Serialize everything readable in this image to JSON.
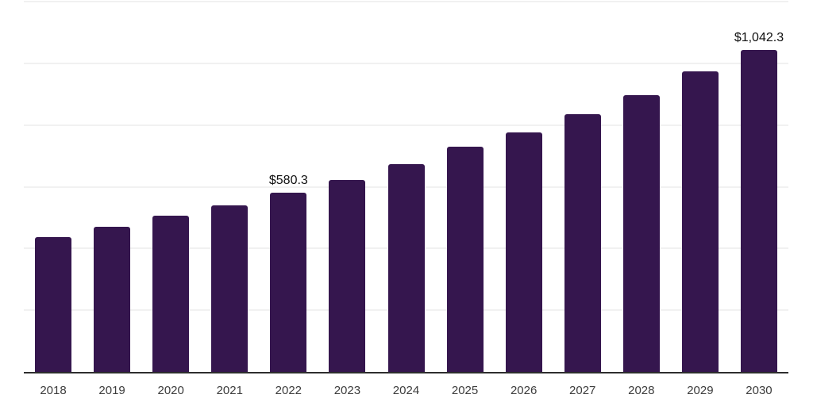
{
  "chart_data": {
    "type": "bar",
    "title": "",
    "xlabel": "",
    "ylabel": "",
    "categories": [
      "2018",
      "2019",
      "2020",
      "2021",
      "2022",
      "2023",
      "2024",
      "2025",
      "2026",
      "2027",
      "2028",
      "2029",
      "2030"
    ],
    "values": [
      437,
      470,
      506,
      540,
      580.3,
      623,
      673,
      731,
      776,
      835,
      898,
      974,
      1042.3
    ],
    "point_labels": [
      "",
      "",
      "",
      "",
      "$580.3",
      "",
      "",
      "",
      "",
      "",
      "",
      "",
      "$1,042.3"
    ],
    "labeled_points": {
      "2022": "$580.3",
      "2030": "$1,042.3"
    },
    "ylim": [
      0,
      1200
    ],
    "grid_interval": 200,
    "grid": "horizontal-only, very light, no y tick labels",
    "legend": "none",
    "colors": {
      "bar": "#35164E",
      "axis": "#2e2e2e",
      "grid": "#f1f1f1",
      "tick_label": "#3c3c3c",
      "value_label": "#101010",
      "background": "#ffffff"
    }
  }
}
